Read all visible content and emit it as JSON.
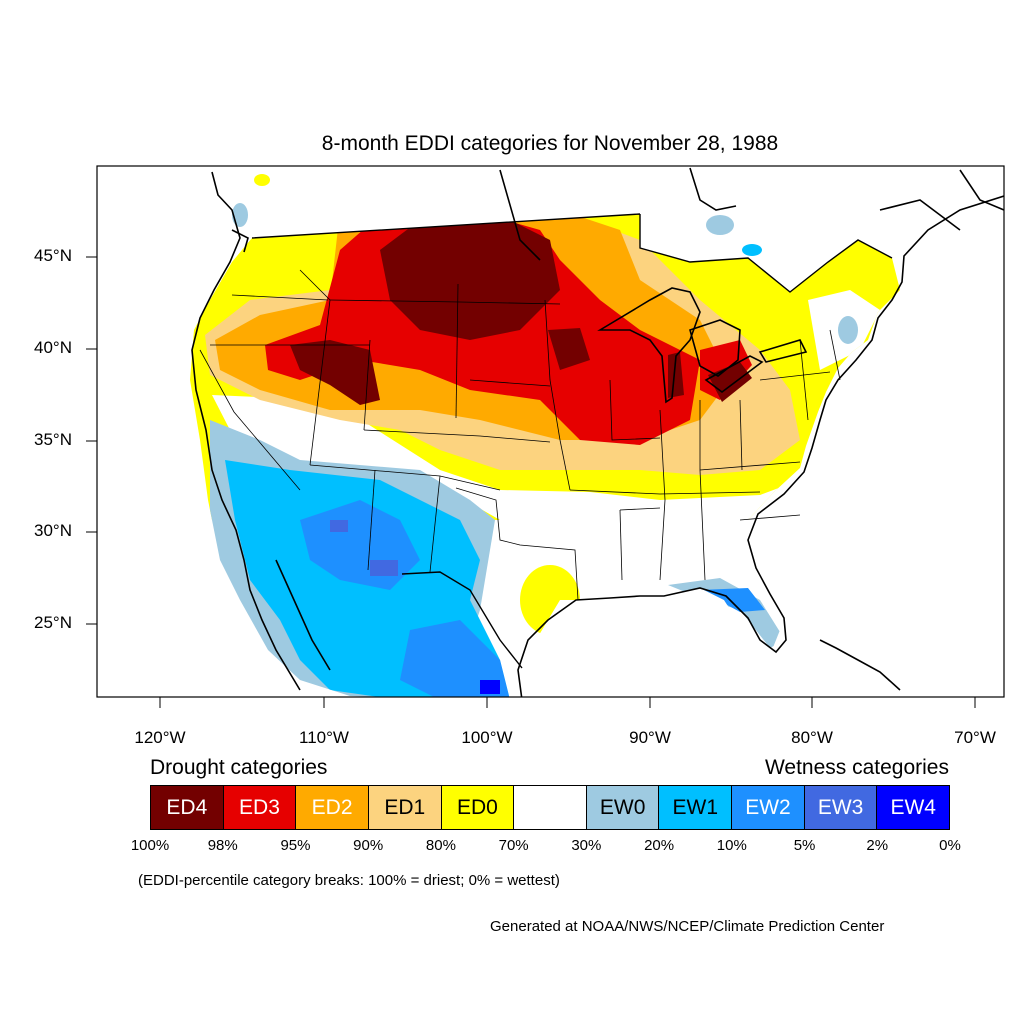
{
  "title": "8-month EDDI categories for November 28, 1988",
  "latitude_labels": [
    "45°N",
    "40°N",
    "35°N",
    "30°N",
    "25°N"
  ],
  "longitude_labels": [
    "120°W",
    "110°W",
    "100°W",
    "90°W",
    "80°W",
    "70°W"
  ],
  "legend": {
    "drought_heading": "Drought categories",
    "wetness_heading": "Wetness categories",
    "categories": [
      {
        "label": "ED4",
        "color": "#730000",
        "text_color": "#ffffff"
      },
      {
        "label": "ED3",
        "color": "#e60000",
        "text_color": "#ffffff"
      },
      {
        "label": "ED2",
        "color": "#ffaa00",
        "text_color": "#ffffff"
      },
      {
        "label": "ED1",
        "color": "#fcd37f",
        "text_color": "#000000"
      },
      {
        "label": "ED0",
        "color": "#ffff00",
        "text_color": "#000000"
      },
      {
        "label": "",
        "color": "#ffffff",
        "text_color": "#000000"
      },
      {
        "label": "EW0",
        "color": "#9ecae1",
        "text_color": "#000000"
      },
      {
        "label": "EW1",
        "color": "#00bfff",
        "text_color": "#000000"
      },
      {
        "label": "EW2",
        "color": "#1e90ff",
        "text_color": "#ffffff"
      },
      {
        "label": "EW3",
        "color": "#4169e1",
        "text_color": "#ffffff"
      },
      {
        "label": "EW4",
        "color": "#0000ff",
        "text_color": "#ffffff"
      }
    ],
    "breaks": [
      "100%",
      "98%",
      "95%",
      "90%",
      "80%",
      "70%",
      "30%",
      "20%",
      "10%",
      "5%",
      "2%",
      "0%"
    ]
  },
  "note": "(EDDI-percentile category breaks: 100% = driest; 0% = wettest)",
  "credit": "Generated at NOAA/NWS/NCEP/Climate Prediction Center"
}
